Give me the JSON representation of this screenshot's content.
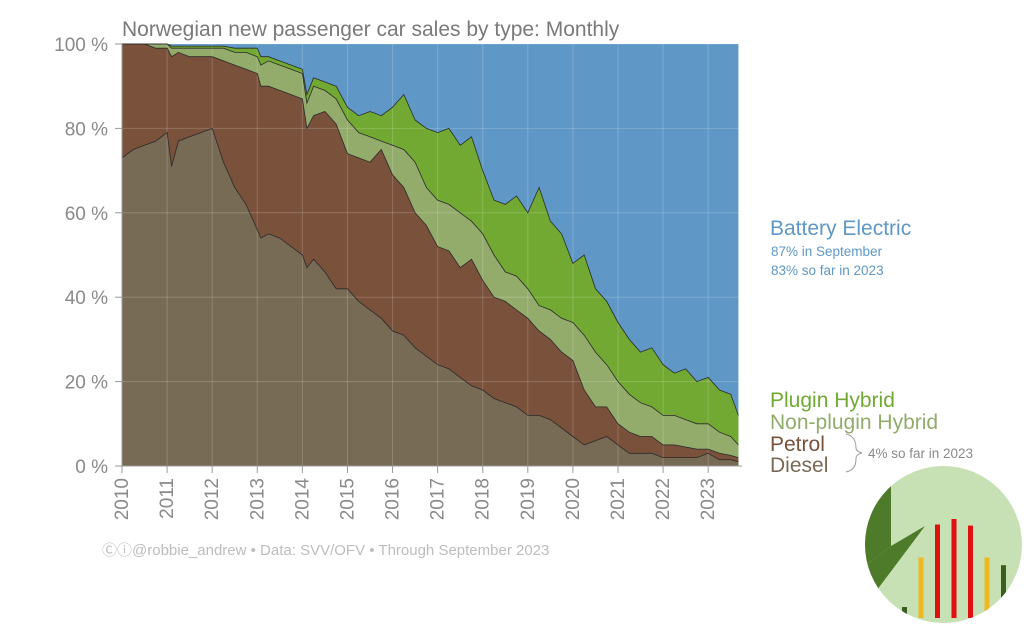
{
  "chart_data": {
    "type": "area",
    "stacked": true,
    "title": "Norwegian new passenger car sales by type: Monthly",
    "xlabel": "",
    "ylabel": "",
    "ylim": [
      0,
      100
    ],
    "yticks": [
      "0 %",
      "20 %",
      "40 %",
      "60 %",
      "80 %",
      "100 %"
    ],
    "ytick_values": [
      0,
      20,
      40,
      60,
      80,
      100
    ],
    "xticks": [
      "2010",
      "2011",
      "2012",
      "2013",
      "2014",
      "2015",
      "2016",
      "2017",
      "2018",
      "2019",
      "2020",
      "2021",
      "2022",
      "2023"
    ],
    "x_start": "2010-01",
    "x_end": "2023-09",
    "grid": true,
    "note": "Cumulative upper boundaries (%) sampled over time; x in fractional years",
    "x": [
      2010.0,
      2010.25,
      2010.5,
      2010.75,
      2011.0,
      2011.1,
      2011.25,
      2011.5,
      2011.75,
      2012.0,
      2012.25,
      2012.5,
      2012.75,
      2013.0,
      2013.08,
      2013.25,
      2013.5,
      2013.75,
      2014.0,
      2014.1,
      2014.25,
      2014.5,
      2014.75,
      2015.0,
      2015.25,
      2015.5,
      2015.75,
      2016.0,
      2016.25,
      2016.5,
      2016.75,
      2017.0,
      2017.25,
      2017.5,
      2017.75,
      2018.0,
      2018.25,
      2018.5,
      2018.75,
      2019.0,
      2019.25,
      2019.5,
      2019.75,
      2020.0,
      2020.25,
      2020.5,
      2020.75,
      2021.0,
      2021.25,
      2021.5,
      2021.75,
      2022.0,
      2022.25,
      2022.5,
      2022.75,
      2023.0,
      2023.25,
      2023.5,
      2023.67
    ],
    "series": [
      {
        "name": "Diesel",
        "color": "#786b55",
        "values": [
          73,
          75,
          76,
          77,
          79,
          71,
          77,
          78,
          79,
          80,
          72,
          66,
          62,
          56,
          54,
          55,
          54,
          52,
          50,
          47,
          49,
          46,
          42,
          42,
          39,
          37,
          35,
          32,
          31,
          28,
          26,
          24,
          23,
          21,
          19,
          18,
          16,
          15,
          14,
          12,
          12,
          11,
          9,
          7,
          5,
          6,
          7,
          5,
          3,
          3,
          3,
          2,
          2,
          2,
          2,
          3,
          1.5,
          1.5,
          1
        ]
      },
      {
        "name": "Petrol",
        "color": "#7a513b",
        "values": [
          100,
          100,
          100,
          99,
          99,
          97,
          98,
          97,
          97,
          97,
          96,
          95,
          94,
          93,
          90,
          90,
          89,
          88,
          87,
          80,
          83,
          84,
          81,
          74,
          73,
          72,
          75,
          69,
          66,
          60,
          57,
          52,
          51,
          47,
          49,
          44,
          40,
          39,
          37,
          35,
          32,
          30,
          27,
          25,
          18,
          14,
          14,
          10,
          8,
          7,
          7,
          5,
          5,
          4.5,
          4,
          4,
          3,
          2.5,
          2
        ]
      },
      {
        "name": "Non-plugin Hybrid",
        "color": "#93ac6c",
        "values": [
          100,
          100,
          100,
          100,
          100,
          99,
          99,
          99,
          99,
          99,
          99,
          98,
          98,
          97,
          95,
          96,
          95,
          94,
          93,
          86,
          90,
          89,
          87,
          82,
          79,
          78,
          77,
          76,
          75,
          72,
          66,
          63,
          62,
          60,
          58,
          55,
          50,
          46,
          45,
          42,
          38,
          37,
          35,
          34,
          31,
          27,
          24,
          20,
          17,
          15,
          14,
          12,
          12,
          11,
          10,
          10,
          8,
          7,
          5
        ]
      },
      {
        "name": "Plugin Hybrid",
        "color": "#72a932",
        "values": [
          100,
          100,
          100,
          100,
          100,
          99.5,
          99.5,
          99.5,
          99.5,
          99.5,
          99.5,
          99,
          99,
          99,
          97,
          97,
          96,
          95,
          94,
          88,
          92,
          91,
          90,
          85,
          83,
          84,
          83,
          85,
          88,
          82,
          80,
          79,
          80,
          76,
          78,
          70,
          63,
          62,
          64,
          60,
          66,
          58,
          55,
          48,
          50,
          42,
          39,
          34,
          30,
          27,
          28,
          24,
          22,
          23,
          20,
          21,
          18,
          17,
          12
        ]
      },
      {
        "name": "Battery Electric",
        "color": "#5f98c6",
        "values": [
          100,
          100,
          100,
          100,
          100,
          100,
          100,
          100,
          100,
          100,
          100,
          100,
          100,
          100,
          100,
          100,
          100,
          100,
          100,
          100,
          100,
          100,
          100,
          100,
          100,
          100,
          100,
          100,
          100,
          100,
          100,
          100,
          100,
          100,
          100,
          100,
          100,
          100,
          100,
          100,
          100,
          100,
          100,
          100,
          100,
          100,
          100,
          100,
          100,
          100,
          100,
          100,
          100,
          100,
          100,
          100,
          100,
          100,
          100
        ]
      }
    ]
  },
  "legend": {
    "bev": {
      "label": "Battery Electric",
      "line1": "87% in September",
      "line2": "83% so far in 2023",
      "color": "#5f98c6"
    },
    "phev": {
      "label": "Plugin Hybrid",
      "color": "#72a932"
    },
    "hev": {
      "label": "Non-plugin Hybrid",
      "color": "#93ac6c"
    },
    "petrol": {
      "label": "Petrol",
      "color": "#7a513b"
    },
    "diesel": {
      "label": "Diesel",
      "color": "#786b55"
    },
    "ice_note": "4% so far in 2023"
  },
  "footer": {
    "cc_icons": "Ⓒⓘ",
    "text": "@robbie_andrew  •  Data: SVV/OFV  •  Through September 2023"
  },
  "badge": {
    "icon": "bar-chart-logo",
    "bars": [
      {
        "color": "#3b5e1f",
        "level": 0.1
      },
      {
        "color": "#f0b820",
        "level": 0.55
      },
      {
        "color": "#e01010",
        "level": 0.85
      },
      {
        "color": "#e01010",
        "level": 0.9
      },
      {
        "color": "#e01010",
        "level": 0.84
      },
      {
        "color": "#f0b820",
        "level": 0.55
      },
      {
        "color": "#3b5e1f",
        "level": 0.48
      },
      {
        "color": "#3b5e1f",
        "level": 0.4
      }
    ]
  }
}
